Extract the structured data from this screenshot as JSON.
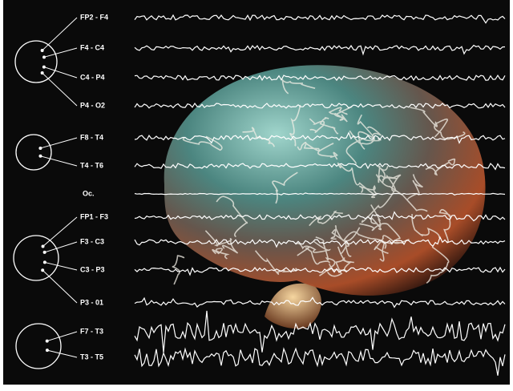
{
  "channels": [
    "FP2 - F4",
    "F4 - C4",
    "C4 - P4",
    "P4 - O2",
    "F8 - T4",
    "T4 - T6",
    "Oc.",
    "FP1 - F3",
    "F3 - C3",
    "C3 - P3",
    "P3 - 01",
    "F7 - T3",
    "T3 - T5"
  ]
}
